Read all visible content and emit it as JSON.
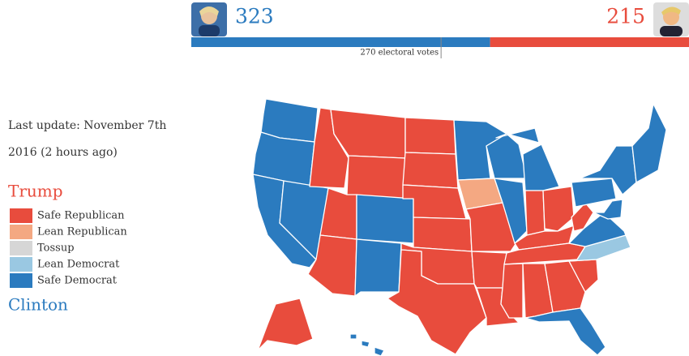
{
  "tally": {
    "values": [
      323,
      215
    ],
    "colors": [
      "#2b7bbf",
      "#e84c3d"
    ],
    "xlim": [
      0,
      538
    ],
    "threshold": {
      "value": 270,
      "label": "270 electoral votes"
    }
  },
  "update": [
    "Last update: November 7th",
    "2016 (2 hours ago)"
  ],
  "legend": {
    "top": "Trump",
    "bottom": "Clinton",
    "items": [
      {
        "label": "Safe Republican",
        "color": "#e84c3d"
      },
      {
        "label": "Lean Republican",
        "color": "#f4a882"
      },
      {
        "label": "Tossup",
        "color": "#d6d6d6"
      },
      {
        "label": "Lean Democrat",
        "color": "#9ac8e2"
      },
      {
        "label": "Safe Democrat",
        "color": "#2b7bbf"
      }
    ]
  }
}
